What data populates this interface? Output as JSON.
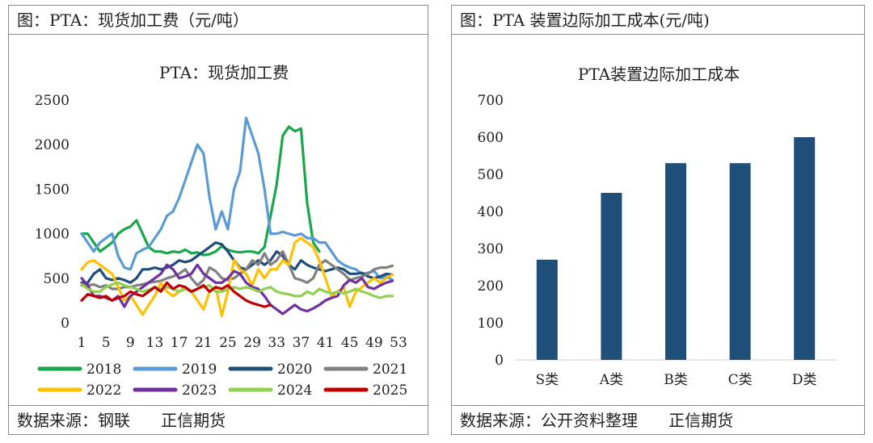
{
  "left": {
    "header": "图：PTA：现货加工费（元/吨）",
    "footer": "数据来源：钢联      正信期货"
  },
  "right": {
    "header": "图：PTA 装置边际加工成本(元/吨)",
    "footer": "数据来源：公开资料整理      正信期货"
  },
  "chart_data": [
    {
      "type": "line",
      "title": "PTA：现货加工费",
      "ylim": [
        0,
        2500
      ],
      "yticks": [
        0,
        500,
        1000,
        1500,
        2000,
        2500
      ],
      "xticks": [
        1,
        5,
        9,
        13,
        17,
        21,
        25,
        29,
        33,
        37,
        41,
        45,
        49,
        53
      ],
      "xlim": [
        1,
        53
      ],
      "legend_position": "bottom",
      "series": [
        {
          "name": "2018",
          "color": "#1aa64a",
          "x": [
            1,
            2,
            3,
            4,
            5,
            6,
            7,
            8,
            9,
            10,
            11,
            12,
            13,
            14,
            15,
            16,
            17,
            18,
            19,
            20,
            21,
            22,
            23,
            24,
            25,
            26,
            27,
            28,
            29,
            30,
            31,
            32,
            33,
            34,
            35,
            36,
            37,
            38,
            39,
            40
          ],
          "values": [
            1000,
            1000,
            900,
            800,
            850,
            900,
            1000,
            1050,
            1080,
            1150,
            1000,
            850,
            800,
            800,
            780,
            800,
            790,
            820,
            780,
            790,
            760,
            770,
            800,
            860,
            820,
            800,
            790,
            800,
            800,
            780,
            850,
            1200,
            1550,
            2100,
            2200,
            2150,
            2180,
            1350,
            900,
            800
          ]
        },
        {
          "name": "2019",
          "color": "#5b9bd5",
          "x": [
            1,
            2,
            3,
            4,
            5,
            6,
            7,
            8,
            9,
            10,
            11,
            12,
            13,
            14,
            15,
            16,
            17,
            18,
            19,
            20,
            21,
            22,
            23,
            24,
            25,
            26,
            27,
            28,
            29,
            30,
            31,
            32,
            33,
            34,
            35,
            36,
            37,
            38,
            39,
            40,
            41,
            42,
            43,
            44,
            45,
            46,
            47,
            48,
            49,
            50,
            51,
            52
          ],
          "values": [
            1000,
            900,
            800,
            900,
            950,
            1000,
            750,
            620,
            600,
            780,
            820,
            850,
            950,
            1050,
            1200,
            1250,
            1400,
            1600,
            1800,
            2000,
            1900,
            1400,
            1050,
            1250,
            1050,
            1500,
            1700,
            2300,
            2100,
            1900,
            1500,
            1000,
            1000,
            1020,
            1000,
            980,
            1000,
            950,
            950,
            900,
            900,
            800,
            700,
            650,
            620,
            600,
            550,
            560,
            580,
            500,
            520,
            480
          ]
        },
        {
          "name": "2020",
          "color": "#1f4e79",
          "x": [
            1,
            2,
            3,
            4,
            5,
            6,
            7,
            8,
            9,
            10,
            11,
            12,
            13,
            14,
            15,
            16,
            17,
            18,
            19,
            20,
            21,
            22,
            23,
            24,
            25,
            26,
            27,
            28,
            29,
            30,
            31,
            32,
            33,
            34,
            35,
            36,
            37,
            38,
            39,
            40,
            41,
            42,
            43,
            44,
            45,
            46,
            47,
            48,
            49,
            50,
            51,
            52
          ],
          "values": [
            450,
            450,
            550,
            600,
            500,
            480,
            500,
            480,
            450,
            500,
            600,
            600,
            620,
            600,
            620,
            650,
            700,
            680,
            700,
            750,
            800,
            850,
            900,
            880,
            800,
            700,
            620,
            600,
            650,
            700,
            650,
            700,
            800,
            750,
            650,
            600,
            700,
            650,
            620,
            600,
            580,
            600,
            620,
            600,
            550,
            550,
            560,
            520,
            500,
            520,
            550,
            540
          ]
        },
        {
          "name": "2021",
          "color": "#808080",
          "x": [
            1,
            2,
            3,
            4,
            5,
            6,
            7,
            8,
            9,
            10,
            11,
            12,
            13,
            14,
            15,
            16,
            17,
            18,
            19,
            20,
            21,
            22,
            23,
            24,
            25,
            26,
            27,
            28,
            29,
            30,
            31,
            32,
            33,
            34,
            35,
            36,
            37,
            38,
            39,
            40,
            41,
            42,
            43,
            44,
            45,
            46,
            47,
            48,
            49,
            50,
            51,
            52
          ],
          "values": [
            420,
            420,
            430,
            400,
            420,
            380,
            380,
            400,
            400,
            420,
            430,
            450,
            460,
            470,
            500,
            520,
            550,
            600,
            500,
            420,
            480,
            620,
            580,
            500,
            480,
            500,
            550,
            600,
            700,
            650,
            780,
            650,
            700,
            800,
            650,
            500,
            480,
            450,
            500,
            650,
            700,
            650,
            600,
            550,
            480,
            500,
            520,
            550,
            600,
            620,
            620,
            640
          ]
        },
        {
          "name": "2022",
          "color": "#ffc000",
          "x": [
            1,
            2,
            3,
            4,
            5,
            6,
            7,
            8,
            9,
            10,
            11,
            12,
            13,
            14,
            15,
            16,
            17,
            18,
            19,
            20,
            21,
            22,
            23,
            24,
            25,
            26,
            27,
            28,
            29,
            30,
            31,
            32,
            33,
            34,
            35,
            36,
            37,
            38,
            39,
            40,
            41,
            42,
            43,
            44,
            45,
            46,
            47,
            48,
            49,
            50,
            51,
            52
          ],
          "values": [
            600,
            680,
            700,
            650,
            600,
            550,
            400,
            250,
            300,
            200,
            90,
            200,
            300,
            450,
            350,
            300,
            350,
            400,
            350,
            250,
            150,
            350,
            400,
            80,
            350,
            700,
            600,
            550,
            420,
            600,
            500,
            600,
            600,
            700,
            650,
            900,
            950,
            900,
            850,
            700,
            500,
            300,
            350,
            400,
            180,
            350,
            400,
            450,
            500,
            450,
            500,
            540
          ]
        },
        {
          "name": "2023",
          "color": "#7030a0",
          "x": [
            1,
            2,
            3,
            4,
            5,
            6,
            7,
            8,
            9,
            10,
            11,
            12,
            13,
            14,
            15,
            16,
            17,
            18,
            19,
            20,
            21,
            22,
            23,
            24,
            25,
            26,
            27,
            28,
            29,
            30,
            31,
            32,
            33,
            34,
            35,
            36,
            37,
            38,
            39,
            40,
            41,
            42,
            43,
            44,
            45,
            46,
            47,
            48,
            49,
            50,
            51,
            52
          ],
          "values": [
            500,
            420,
            300,
            300,
            280,
            250,
            300,
            180,
            300,
            350,
            400,
            450,
            500,
            550,
            650,
            600,
            500,
            520,
            550,
            650,
            550,
            500,
            450,
            450,
            500,
            580,
            550,
            450,
            400,
            380,
            300,
            200,
            150,
            100,
            150,
            200,
            150,
            130,
            160,
            200,
            250,
            280,
            300,
            420,
            480,
            450,
            500,
            400,
            380,
            420,
            450,
            470
          ]
        },
        {
          "name": "2024",
          "color": "#92d050",
          "x": [
            1,
            2,
            3,
            4,
            5,
            6,
            7,
            8,
            9,
            10,
            11,
            12,
            13,
            14,
            15,
            16,
            17,
            18,
            19,
            20,
            21,
            22,
            23,
            24,
            25,
            26,
            27,
            28,
            29,
            30,
            31,
            32,
            33,
            34,
            35,
            36,
            37,
            38,
            39,
            40,
            41,
            42,
            43,
            44,
            45,
            46,
            47,
            48,
            49,
            50,
            51,
            52
          ],
          "values": [
            430,
            380,
            350,
            350,
            400,
            430,
            450,
            420,
            400,
            380,
            350,
            370,
            400,
            380,
            400,
            380,
            350,
            380,
            350,
            380,
            400,
            420,
            350,
            350,
            380,
            400,
            380,
            400,
            380,
            350,
            380,
            400,
            350,
            330,
            320,
            300,
            300,
            350,
            320,
            380,
            350,
            330,
            350,
            330,
            350,
            380,
            350,
            330,
            300,
            280,
            300,
            300
          ]
        },
        {
          "name": "2025",
          "color": "#c00000",
          "x": [
            1,
            2,
            3,
            4,
            5,
            6,
            7,
            8,
            9,
            10,
            11,
            12,
            13,
            14,
            15,
            16,
            17,
            18,
            19,
            20,
            21,
            22,
            23,
            24,
            25,
            26,
            27,
            28,
            29,
            30,
            31,
            32
          ],
          "values": [
            250,
            320,
            300,
            280,
            300,
            250,
            280,
            300,
            350,
            320,
            300,
            350,
            400,
            350,
            450,
            380,
            420,
            400,
            350,
            380,
            420,
            350,
            400,
            380,
            420,
            350,
            300,
            250,
            220,
            200,
            180,
            200
          ]
        }
      ]
    },
    {
      "type": "bar",
      "title": "PTA装置边际加工成本",
      "categories": [
        "S类",
        "A类",
        "B类",
        "C类",
        "D类"
      ],
      "values": [
        270,
        450,
        530,
        530,
        600
      ],
      "ylim": [
        0,
        700
      ],
      "yticks": [
        0,
        100,
        200,
        300,
        400,
        500,
        600,
        700
      ],
      "bar_color": "#1f4e79"
    }
  ]
}
